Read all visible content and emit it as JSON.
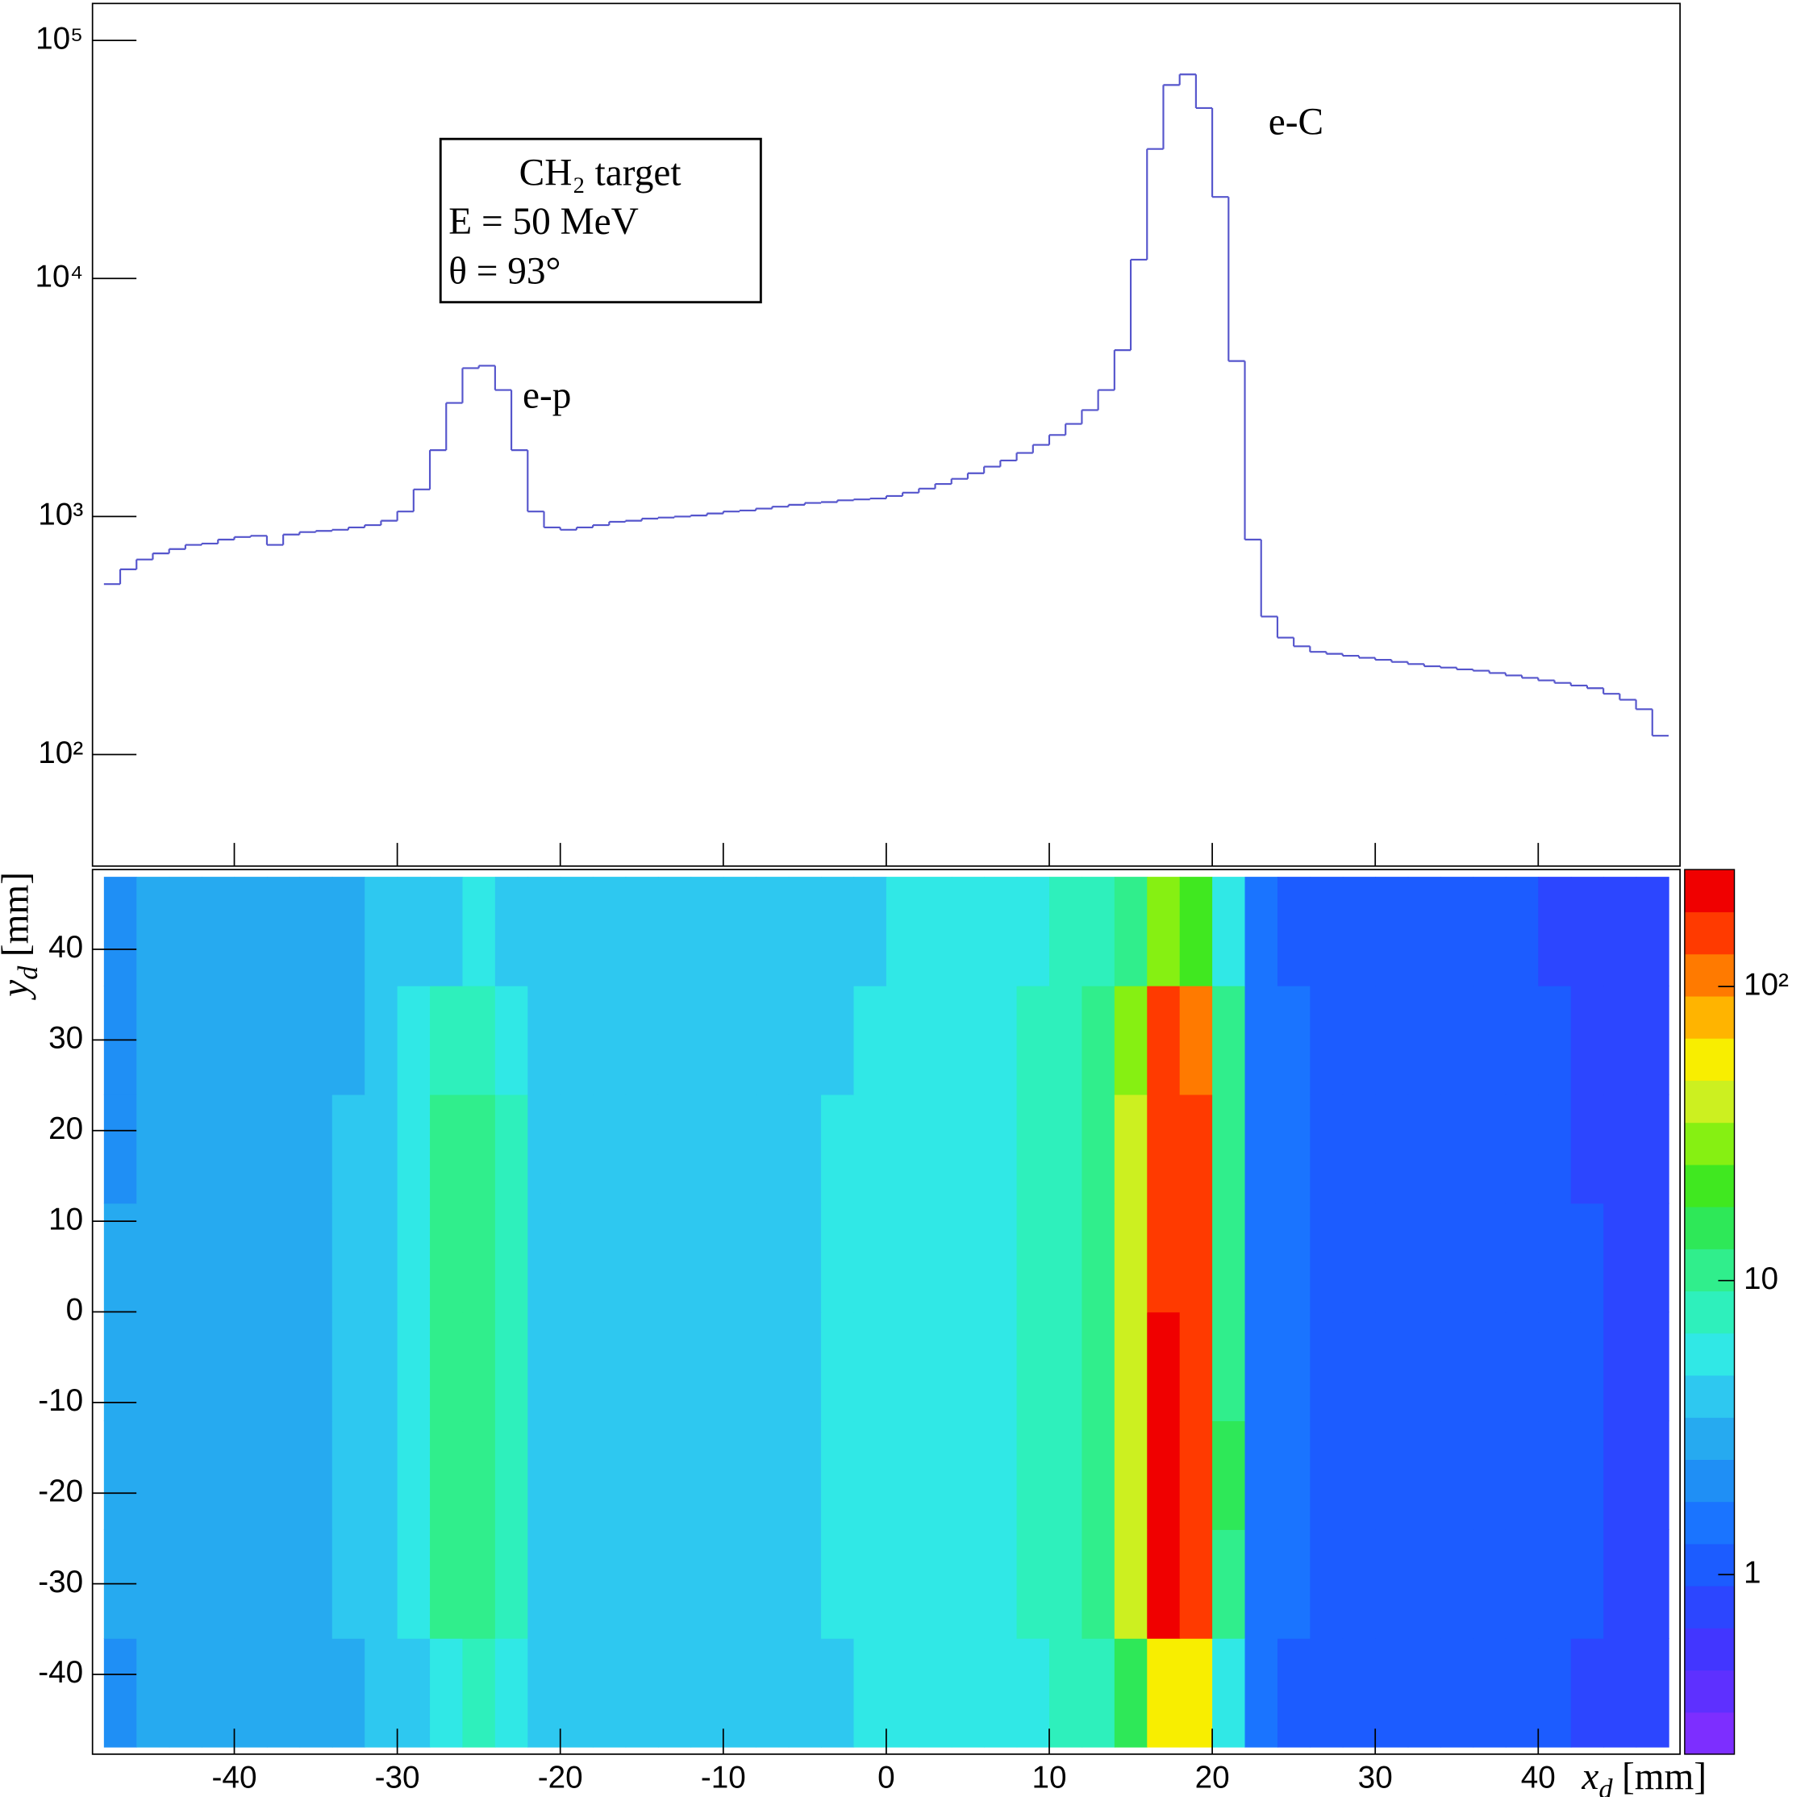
{
  "chart_data": [
    {
      "type": "histogram",
      "color": "#5555cc",
      "log_y": true,
      "xlim": [
        -48.7,
        48.7
      ],
      "xticks": [
        -40,
        -30,
        -20,
        -10,
        0,
        10,
        20,
        30,
        40
      ],
      "ylim": [
        34,
        143000
      ],
      "yticks": [
        {
          "value": 100,
          "label": "10²"
        },
        {
          "value": 1000,
          "label": "10³"
        },
        {
          "value": 10000,
          "label": "10⁴"
        },
        {
          "value": 100000,
          "label": "10⁵"
        }
      ],
      "legend_box": [
        "CH₂ target",
        "E = 50 MeV",
        "θ = 93°"
      ],
      "annotations": [
        "e-p",
        "e-C"
      ],
      "bins": [
        -48,
        -47,
        -46,
        -45,
        -44,
        -43,
        -42,
        -41,
        -40,
        -39,
        -38,
        -37,
        -36,
        -35,
        -34,
        -33,
        -32,
        -31,
        -30,
        -29,
        -28,
        -27,
        -26,
        -25,
        -24,
        -23,
        -22,
        -21,
        -20,
        -19,
        -18,
        -17,
        -16,
        -15,
        -14,
        -13,
        -12,
        -11,
        -10,
        -9,
        -8,
        -7,
        -6,
        -5,
        -4,
        -3,
        -2,
        -1,
        0,
        1,
        2,
        3,
        4,
        5,
        6,
        7,
        8,
        9,
        10,
        11,
        12,
        13,
        14,
        15,
        16,
        17,
        18,
        19,
        20,
        21,
        22,
        23,
        24,
        25,
        26,
        27,
        28,
        29,
        30,
        31,
        32,
        33,
        34,
        35,
        36,
        37,
        38,
        39,
        40,
        41,
        42,
        43,
        44,
        45,
        46,
        47,
        48
      ],
      "values": [
        520,
        600,
        660,
        700,
        730,
        760,
        770,
        800,
        820,
        830,
        760,
        840,
        860,
        870,
        880,
        900,
        920,
        960,
        1050,
        1300,
        1900,
        3000,
        4200,
        4300,
        3400,
        1900,
        1050,
        900,
        880,
        900,
        920,
        950,
        960,
        980,
        990,
        1000,
        1010,
        1030,
        1050,
        1060,
        1080,
        1100,
        1120,
        1140,
        1150,
        1170,
        1180,
        1190,
        1220,
        1260,
        1310,
        1370,
        1440,
        1520,
        1620,
        1720,
        1850,
        2000,
        2200,
        2450,
        2800,
        3400,
        5000,
        12000,
        35000,
        65000,
        72000,
        52000,
        22000,
        4500,
        800,
        380,
        310,
        285,
        270,
        265,
        260,
        255,
        250,
        245,
        240,
        235,
        232,
        228,
        225,
        220,
        215,
        210,
        205,
        200,
        195,
        190,
        180,
        170,
        155,
        120
      ]
    },
    {
      "type": "heatmap",
      "xlim": [
        -48.7,
        48.7
      ],
      "xticks": [
        -40,
        -30,
        -20,
        -10,
        0,
        10,
        20,
        30,
        40
      ],
      "ylim": [
        -48.8,
        48.8
      ],
      "yticks": [
        -40,
        -30,
        -20,
        -10,
        0,
        10,
        20,
        30,
        40
      ],
      "x_label": {
        "symbol": "x",
        "subscript": "d",
        "unit": "[mm]"
      },
      "y_label": {
        "symbol": "y",
        "subscript": "d",
        "unit": "[mm]"
      },
      "log_z": true,
      "zlim": [
        0.245,
        250
      ],
      "zticks": [
        1,
        10,
        {
          "value": 100,
          "label": "10²"
        }
      ],
      "colors": [
        "#7d2eff",
        "#5e30ff",
        "#4236ff",
        "#2c46ff",
        "#1c5cff",
        "#1a74ff",
        "#1f8ff5",
        "#26aaf0",
        "#2ec8f0",
        "#30e8e6",
        "#2ef0bc",
        "#30ee8c",
        "#2ee858",
        "#40e820",
        "#86f012",
        "#ccf020",
        "#f8ee00",
        "#ffb400",
        "#ff7a00",
        "#ff3a00",
        "#f00000"
      ],
      "xbins": [
        -48,
        -46,
        -44,
        -42,
        -40,
        -38,
        -36,
        -34,
        -32,
        -30,
        -28,
        -26,
        -24,
        -22,
        -20,
        -18,
        -16,
        -14,
        -12,
        -10,
        -8,
        -6,
        -4,
        -2,
        0,
        2,
        4,
        6,
        8,
        10,
        12,
        14,
        16,
        18,
        20,
        22,
        24,
        26,
        28,
        30,
        32,
        34,
        36,
        38,
        40,
        42,
        44,
        46,
        48
      ],
      "ybins": [
        -48,
        -36,
        -24,
        -12,
        0,
        12,
        24,
        36,
        48
      ],
      "z": [
        [
          2.3,
          2.6,
          2.8,
          2.8,
          2.9,
          3,
          3.1,
          3.3,
          3.6,
          4.5,
          6,
          7,
          5.5,
          4,
          3.8,
          3.8,
          3.8,
          3.9,
          4,
          4.1,
          4.3,
          4.4,
          4.6,
          4.8,
          5,
          5.2,
          5.6,
          6,
          6.5,
          7,
          8,
          15,
          60,
          50,
          6,
          1.4,
          1.2,
          1.2,
          1.1,
          1.1,
          1.1,
          1,
          1,
          1,
          1,
          0.9,
          0.9,
          0.9
        ],
        [
          2.5,
          2.7,
          2.9,
          3,
          3.1,
          3.2,
          3.3,
          3.5,
          4,
          6,
          10,
          12,
          8,
          4.5,
          4,
          4,
          4,
          4.1,
          4.2,
          4.3,
          4.5,
          4.6,
          4.8,
          5,
          5.2,
          5.5,
          6,
          6.5,
          7,
          8,
          10,
          40,
          200,
          160,
          12,
          1.5,
          1.3,
          1.2,
          1.2,
          1.1,
          1.1,
          1.1,
          1,
          1,
          1,
          1,
          0.9,
          0.9
        ],
        [
          2.6,
          2.8,
          3,
          3.1,
          3.1,
          3.2,
          3.4,
          3.6,
          4,
          6.5,
          11,
          12,
          8,
          4.6,
          4.1,
          4,
          4.1,
          4.1,
          4.2,
          4.4,
          4.5,
          4.7,
          4.9,
          5.1,
          5.3,
          5.6,
          6.1,
          6.6,
          7.2,
          8.2,
          10,
          42,
          190,
          160,
          13,
          1.5,
          1.3,
          1.2,
          1.2,
          1.1,
          1.1,
          1.1,
          1,
          1,
          1,
          1,
          0.9,
          0.9
        ],
        [
          2.5,
          2.8,
          3,
          3,
          3,
          3.2,
          3.3,
          3.5,
          4,
          6,
          10,
          12,
          8,
          4.5,
          4,
          4,
          4,
          4,
          4.2,
          4.3,
          4.5,
          4.6,
          4.8,
          5,
          5.2,
          5.5,
          6,
          6.5,
          7,
          8,
          10,
          40,
          180,
          150,
          12,
          1.5,
          1.3,
          1.2,
          1.2,
          1.1,
          1.1,
          1.1,
          1,
          1,
          1,
          1,
          0.9,
          0.9
        ],
        [
          2.5,
          2.8,
          3,
          3,
          3.1,
          3.2,
          3.3,
          3.5,
          4,
          6,
          11,
          12,
          8,
          4.5,
          4,
          4,
          4,
          4.1,
          4.2,
          4.3,
          4.5,
          4.6,
          4.8,
          5,
          5.2,
          5.5,
          6,
          6.5,
          7,
          8,
          10,
          42,
          170,
          140,
          12,
          1.5,
          1.3,
          1.2,
          1.2,
          1.1,
          1.1,
          1.1,
          1,
          1,
          1,
          1,
          0.9,
          0.9
        ],
        [
          2.4,
          2.7,
          2.9,
          3,
          3,
          3.1,
          3.3,
          3.5,
          3.9,
          6,
          10,
          11,
          7.5,
          4.4,
          4,
          4,
          4,
          4,
          4.1,
          4.3,
          4.4,
          4.6,
          4.8,
          5,
          5.2,
          5.5,
          6,
          6.4,
          7,
          8,
          10,
          38,
          170,
          140,
          11,
          1.5,
          1.3,
          1.2,
          1.1,
          1.1,
          1.1,
          1,
          1,
          1,
          1,
          0.9,
          0.9,
          0.9
        ],
        [
          2.4,
          2.6,
          2.8,
          2.9,
          3,
          3.1,
          3.2,
          3.4,
          3.8,
          5.5,
          8,
          9,
          6,
          4.2,
          3.9,
          3.9,
          3.9,
          4,
          4.1,
          4.2,
          4.3,
          4.5,
          4.7,
          4.9,
          5.1,
          5.4,
          5.8,
          6.3,
          6.8,
          7.8,
          9.5,
          30,
          150,
          120,
          10,
          1.4,
          1.3,
          1.2,
          1.1,
          1.1,
          1.1,
          1,
          1,
          1,
          1,
          0.9,
          0.9,
          0.9
        ],
        [
          2.2,
          2.5,
          2.7,
          2.8,
          2.9,
          3,
          3.1,
          3.2,
          3.5,
          4.2,
          4.5,
          5,
          4.5,
          3.9,
          3.7,
          3.7,
          3.8,
          3.8,
          3.9,
          4,
          4.1,
          4.3,
          4.5,
          4.7,
          4.9,
          5.1,
          5.4,
          5.8,
          6.3,
          7,
          9,
          12,
          25,
          20,
          6,
          1.3,
          1.2,
          1.1,
          1.1,
          1.1,
          1,
          1,
          1,
          1,
          0.9,
          0.9,
          0.9,
          0.9
        ]
      ]
    }
  ]
}
